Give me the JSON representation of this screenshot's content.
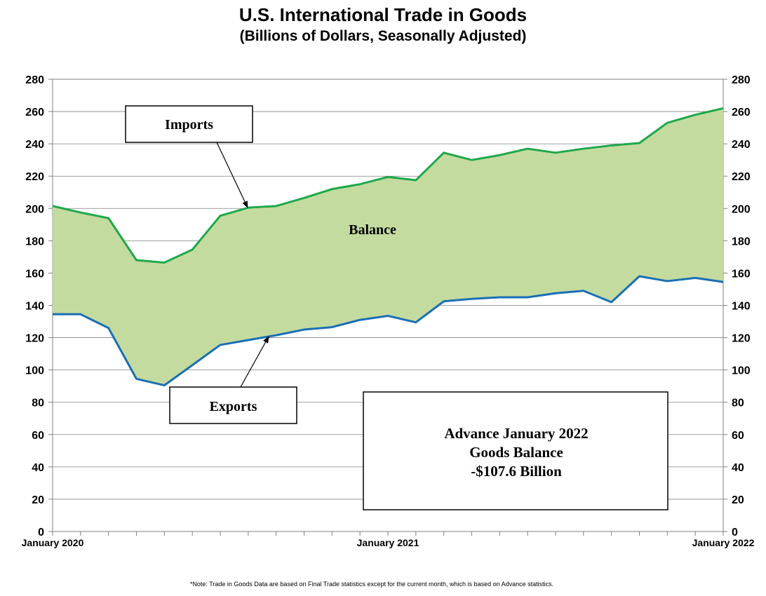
{
  "chart_data": {
    "type": "area",
    "title": "U.S. International Trade in Goods",
    "subtitle": "(Billions of Dollars, Seasonally Adjusted)",
    "x_labels": [
      "January 2020",
      "January 2021",
      "January 2022"
    ],
    "ylim": [
      0,
      280
    ],
    "y_ticks": [
      0,
      20,
      40,
      60,
      80,
      100,
      120,
      140,
      160,
      180,
      200,
      220,
      240,
      260,
      280
    ],
    "grid": true,
    "series": [
      {
        "name": "Imports",
        "color": "#1fa84a",
        "values": [
          201.5,
          197.5,
          194,
          168,
          166.5,
          174.5,
          195.5,
          200.5,
          201.5,
          206.5,
          212,
          215,
          219.5,
          217.5,
          234.5,
          230,
          233,
          237,
          234.5,
          237,
          239,
          240.5,
          253,
          258,
          262
        ]
      },
      {
        "name": "Exports",
        "color": "#1a6fb3",
        "values": [
          134.5,
          134.5,
          126,
          94.5,
          90.5,
          103,
          115.5,
          118.5,
          121.5,
          125,
          126.5,
          131,
          133.5,
          129.5,
          142.5,
          144,
          145,
          145,
          147.5,
          149,
          142,
          158,
          155,
          157,
          154.5
        ]
      }
    ],
    "fill_label": "Balance",
    "fill_color": "#c4dba0",
    "annotations": {
      "imports": "Imports",
      "exports": "Exports",
      "advance_lines": [
        "Advance January 2022",
        "Goods Balance",
        "-$107.6 Billion"
      ]
    }
  },
  "note": "*Note: Trade in Goods Data are based on Final Trade statistics except for the current month, which is based on Advance statistics."
}
